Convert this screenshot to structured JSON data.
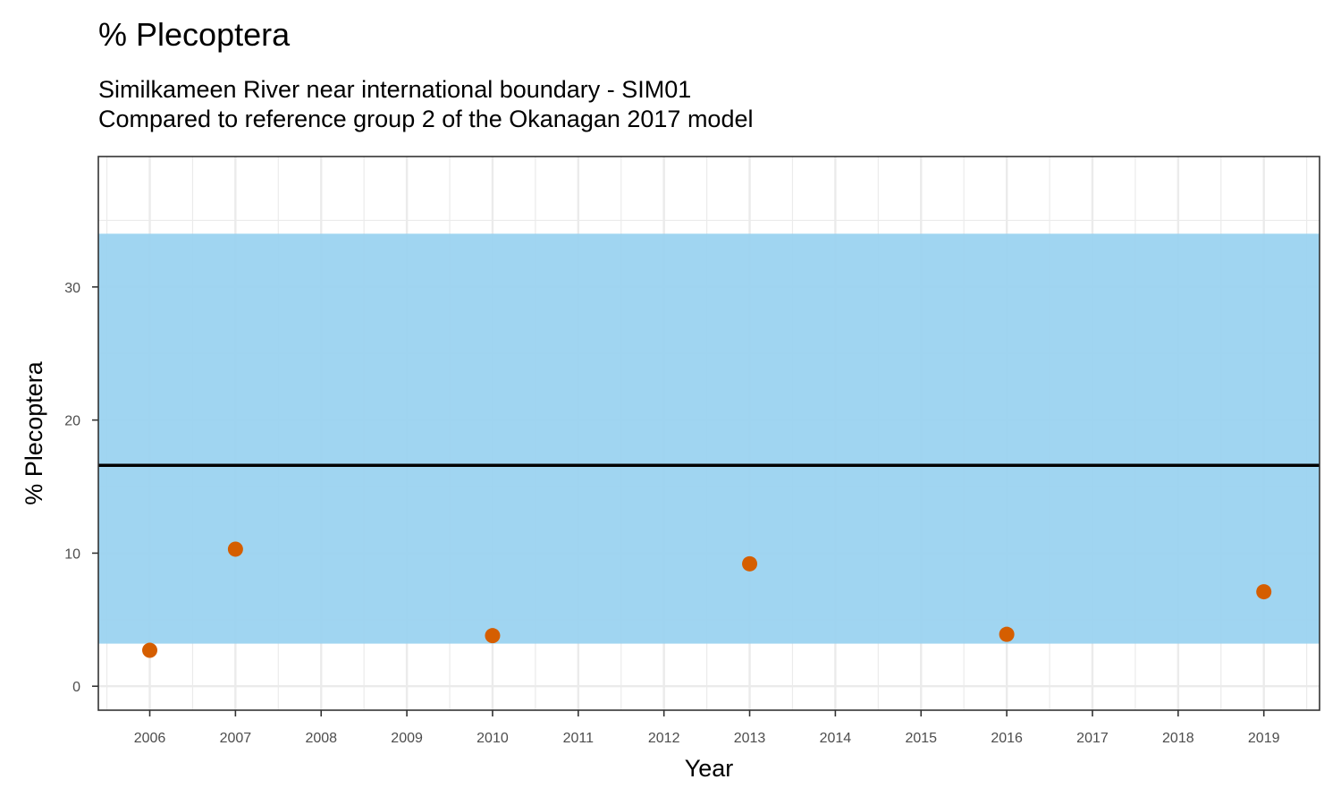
{
  "chart_data": {
    "type": "scatter",
    "title": "% Plecoptera",
    "subtitle_lines": [
      "Similkameen River near international boundary - SIM01",
      "Compared to reference group 2 of the Okanagan 2017 model"
    ],
    "xlabel": "Year",
    "ylabel": "% Plecoptera",
    "x_ticks": [
      2006,
      2007,
      2008,
      2009,
      2010,
      2011,
      2012,
      2013,
      2014,
      2015,
      2016,
      2017,
      2018,
      2019
    ],
    "y_ticks": [
      0,
      10,
      20,
      30
    ],
    "xlim": [
      2005.4,
      2019.65
    ],
    "ylim": [
      -1.8,
      39.8
    ],
    "points": [
      {
        "x": 2006,
        "y": 2.7
      },
      {
        "x": 2007,
        "y": 10.3
      },
      {
        "x": 2010,
        "y": 3.8
      },
      {
        "x": 2013,
        "y": 9.2
      },
      {
        "x": 2016,
        "y": 3.9
      },
      {
        "x": 2019,
        "y": 7.1
      }
    ],
    "reference_band": {
      "lower": 3.2,
      "upper": 34.0
    },
    "reference_line": 16.6,
    "grid": true,
    "colors": {
      "band": "#99D2F0",
      "points": "#D55E00",
      "line": "#000000",
      "grid": "#EBEBEB",
      "panel_border": "#333333"
    }
  }
}
